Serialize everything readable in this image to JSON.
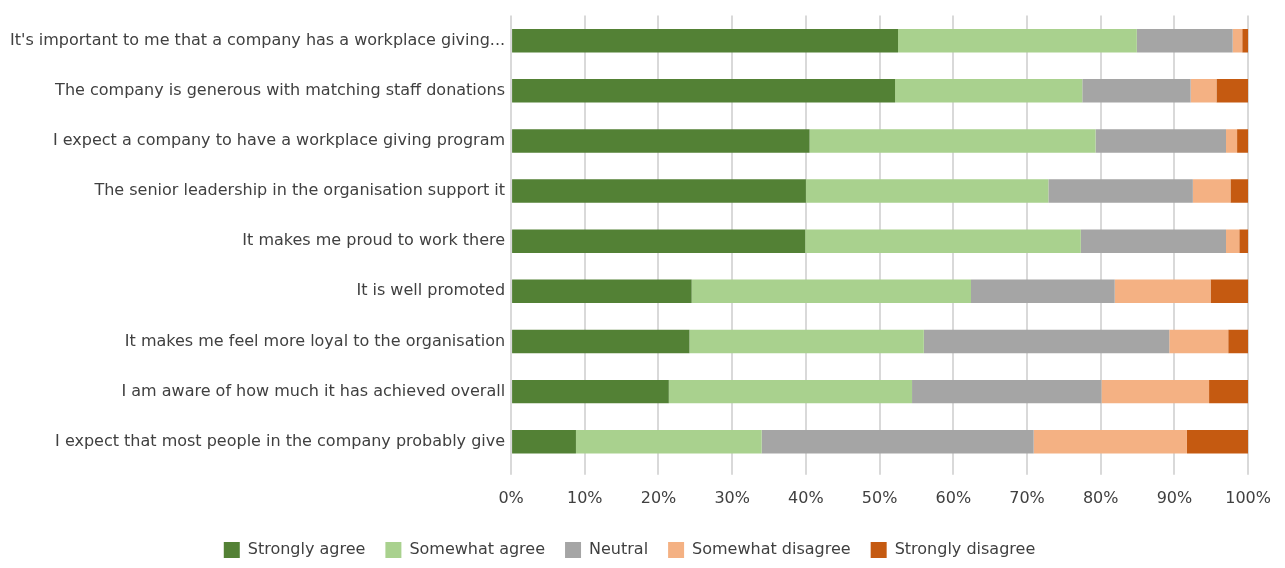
{
  "chart_data": {
    "type": "bar",
    "orientation": "horizontal",
    "stacked": true,
    "categories": [
      "It's important to me that a company has a workplace giving...",
      "The company is generous with matching staff donations",
      "I expect a company to have a workplace giving program",
      "The senior leadership in the organisation support it",
      "It makes me proud to work there",
      "It is well promoted",
      "It makes me feel more loyal to the organisation",
      "I am aware of how much it has achieved overall",
      "I expect that most people in the company probably give"
    ],
    "series": [
      {
        "name": "Strongly agree",
        "color": "#538135",
        "values": [
          52.5,
          52.1,
          40.5,
          40,
          39.9,
          24.5,
          24.2,
          21.4,
          8.8
        ]
      },
      {
        "name": "Somewhat agree",
        "color": "#a9d18e",
        "values": [
          32.4,
          25.4,
          38.8,
          32.9,
          37.4,
          37.9,
          31.8,
          33,
          25.2
        ]
      },
      {
        "name": "Neutral",
        "color": "#a5a5a5",
        "values": [
          13,
          14.7,
          17.7,
          19.6,
          19.7,
          19.5,
          33.3,
          25.7,
          36.9
        ]
      },
      {
        "name": "Somewhat disagree",
        "color": "#f4b183",
        "values": [
          1.3,
          3.5,
          1.5,
          5.1,
          1.8,
          13,
          8,
          14.6,
          20.8
        ]
      },
      {
        "name": "Strongly disagree",
        "color": "#c55a11",
        "values": [
          0.8,
          4.3,
          1.5,
          2.4,
          1.2,
          5.1,
          2.7,
          5.3,
          8.3
        ]
      }
    ],
    "xlim": [
      0,
      100
    ],
    "xticks": [
      {
        "value": 0,
        "label": "0%"
      },
      {
        "value": 10,
        "label": "10%"
      },
      {
        "value": 20,
        "label": "20%"
      },
      {
        "value": 30,
        "label": "30%"
      },
      {
        "value": 40,
        "label": "40%"
      },
      {
        "value": 50,
        "label": "50%"
      },
      {
        "value": 60,
        "label": "60%"
      },
      {
        "value": 70,
        "label": "70%"
      },
      {
        "value": 80,
        "label": "80%"
      },
      {
        "value": 90,
        "label": "90%"
      },
      {
        "value": 100,
        "label": "100%"
      }
    ],
    "grid": "x",
    "legend": "bottom"
  }
}
